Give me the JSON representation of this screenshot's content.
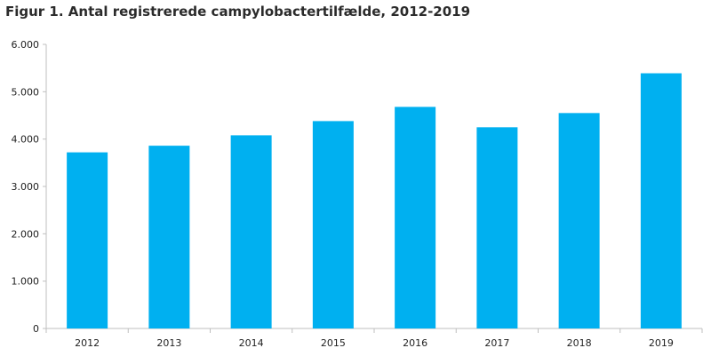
{
  "chart_data": {
    "type": "bar",
    "title": "Figur 1. Antal registrerede  campylobactertilfælde, 2012-2019",
    "categories": [
      "2012",
      "2013",
      "2014",
      "2015",
      "2016",
      "2017",
      "2018",
      "2019"
    ],
    "values": [
      3720,
      3860,
      4080,
      4380,
      4680,
      4250,
      4550,
      5390
    ],
    "ylim": [
      0,
      6000
    ],
    "yticks": [
      0,
      1000,
      2000,
      3000,
      4000,
      5000,
      6000
    ],
    "ytick_labels": [
      "0",
      "1.000",
      "2.000",
      "3.000",
      "4.000",
      "5.000",
      "6.000"
    ],
    "xlabel": "",
    "ylabel": "",
    "grid": false,
    "bar_color": "#00b0f0"
  }
}
